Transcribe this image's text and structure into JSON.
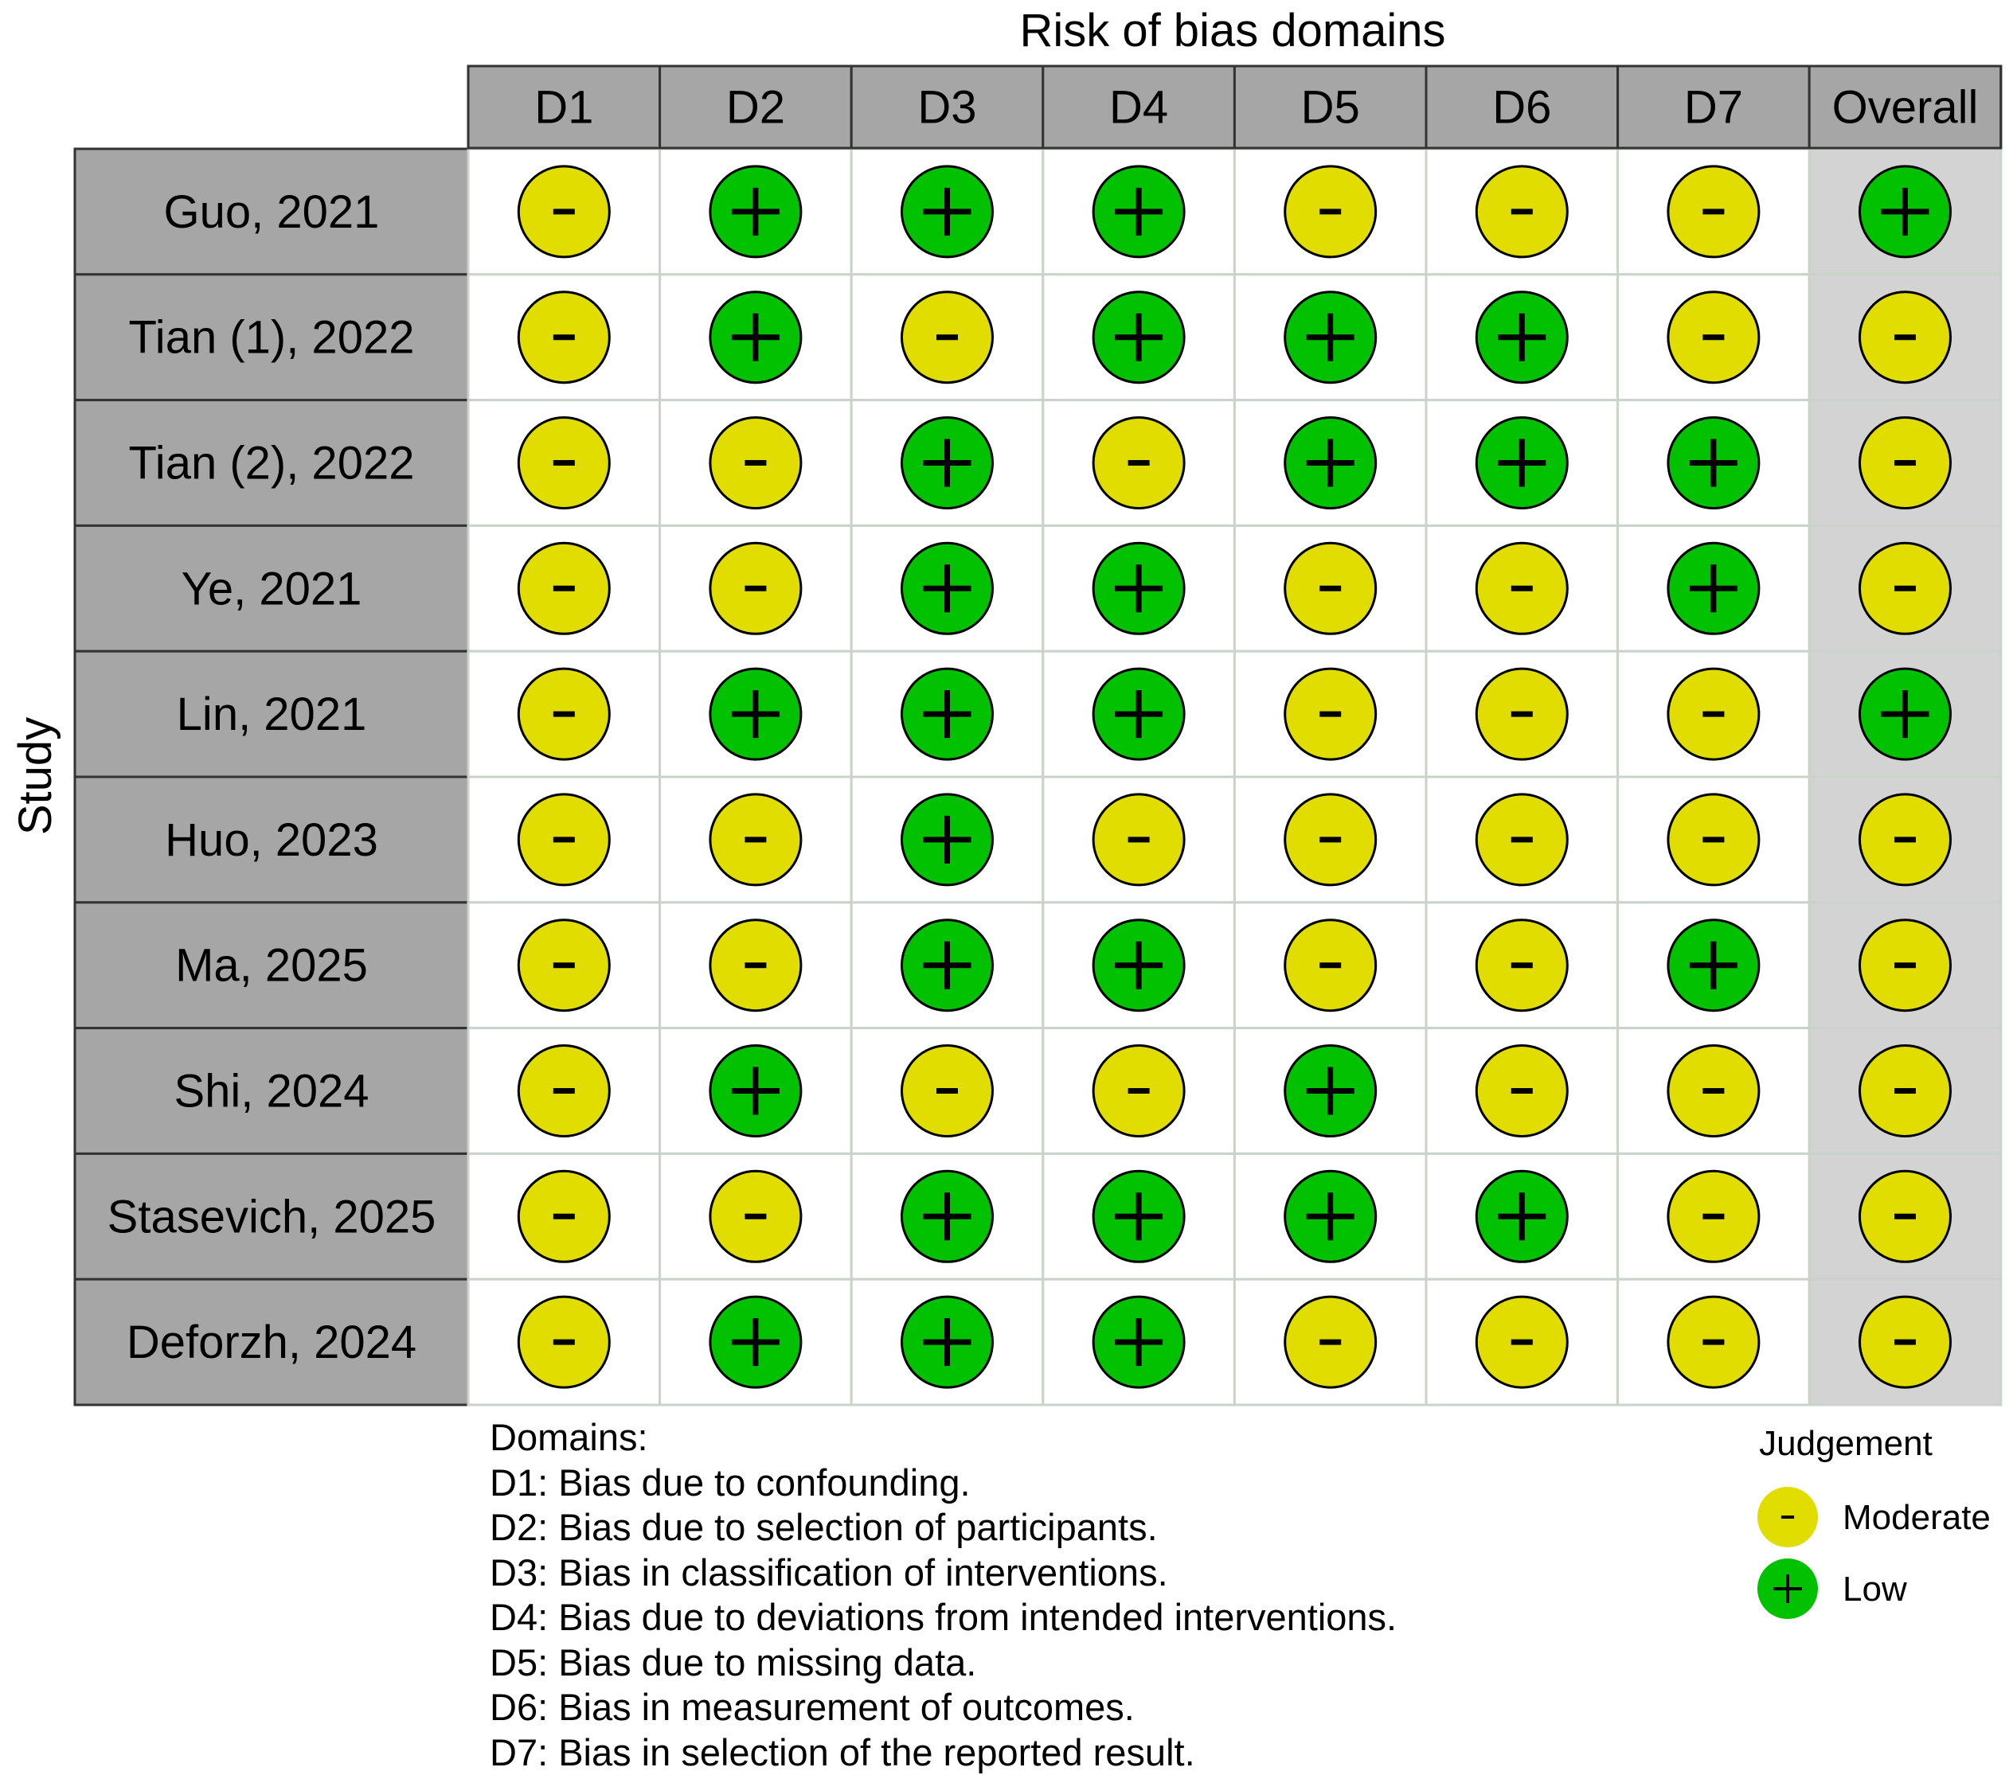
{
  "chart_data": {
    "type": "table",
    "title": "Risk of bias domains",
    "ylabel": "Study",
    "domains": [
      "D1",
      "D2",
      "D3",
      "D4",
      "D5",
      "D6",
      "D7",
      "Overall"
    ],
    "studies": [
      "Guo, 2021",
      "Tian (1), 2022",
      "Tian (2), 2022",
      "Ye, 2021",
      "Lin, 2021",
      "Huo, 2023",
      "Ma, 2025",
      "Shi, 2024",
      "Stasevich, 2025",
      "Deforzh, 2024"
    ],
    "judgements": [
      [
        "Moderate",
        "Low",
        "Low",
        "Low",
        "Moderate",
        "Moderate",
        "Moderate",
        "Low"
      ],
      [
        "Moderate",
        "Low",
        "Moderate",
        "Low",
        "Low",
        "Low",
        "Moderate",
        "Moderate"
      ],
      [
        "Moderate",
        "Moderate",
        "Low",
        "Moderate",
        "Low",
        "Low",
        "Low",
        "Moderate"
      ],
      [
        "Moderate",
        "Moderate",
        "Low",
        "Low",
        "Moderate",
        "Moderate",
        "Low",
        "Moderate"
      ],
      [
        "Moderate",
        "Low",
        "Low",
        "Low",
        "Moderate",
        "Moderate",
        "Moderate",
        "Low"
      ],
      [
        "Moderate",
        "Moderate",
        "Low",
        "Moderate",
        "Moderate",
        "Moderate",
        "Moderate",
        "Moderate"
      ],
      [
        "Moderate",
        "Moderate",
        "Low",
        "Low",
        "Moderate",
        "Moderate",
        "Low",
        "Moderate"
      ],
      [
        "Moderate",
        "Low",
        "Moderate",
        "Moderate",
        "Low",
        "Moderate",
        "Moderate",
        "Moderate"
      ],
      [
        "Moderate",
        "Moderate",
        "Low",
        "Low",
        "Low",
        "Low",
        "Moderate",
        "Moderate"
      ],
      [
        "Moderate",
        "Low",
        "Low",
        "Low",
        "Moderate",
        "Moderate",
        "Moderate",
        "Moderate"
      ]
    ],
    "legend": {
      "title": "Judgement",
      "placement": "bottom-right",
      "items": [
        {
          "label": "Moderate",
          "symbol": "-",
          "color": "#e1dd00"
        },
        {
          "label": "Low",
          "symbol": "+",
          "color": "#02c100"
        }
      ]
    },
    "colors": {
      "header_fill": "#a6a6a6",
      "study_fill": "#a6a6a6",
      "overall_column_fill": "#d3d3d3",
      "cell_fill": "#ffffff"
    }
  },
  "domains_key": {
    "heading": "Domains:",
    "items": [
      "D1: Bias due to confounding.",
      "D2: Bias due to selection of participants.",
      "D3: Bias in classification of interventions.",
      "D4: Bias due to deviations from intended interventions.",
      "D5: Bias due to missing data.",
      "D6: Bias in measurement of outcomes.",
      "D7: Bias in selection of the reported result."
    ]
  }
}
